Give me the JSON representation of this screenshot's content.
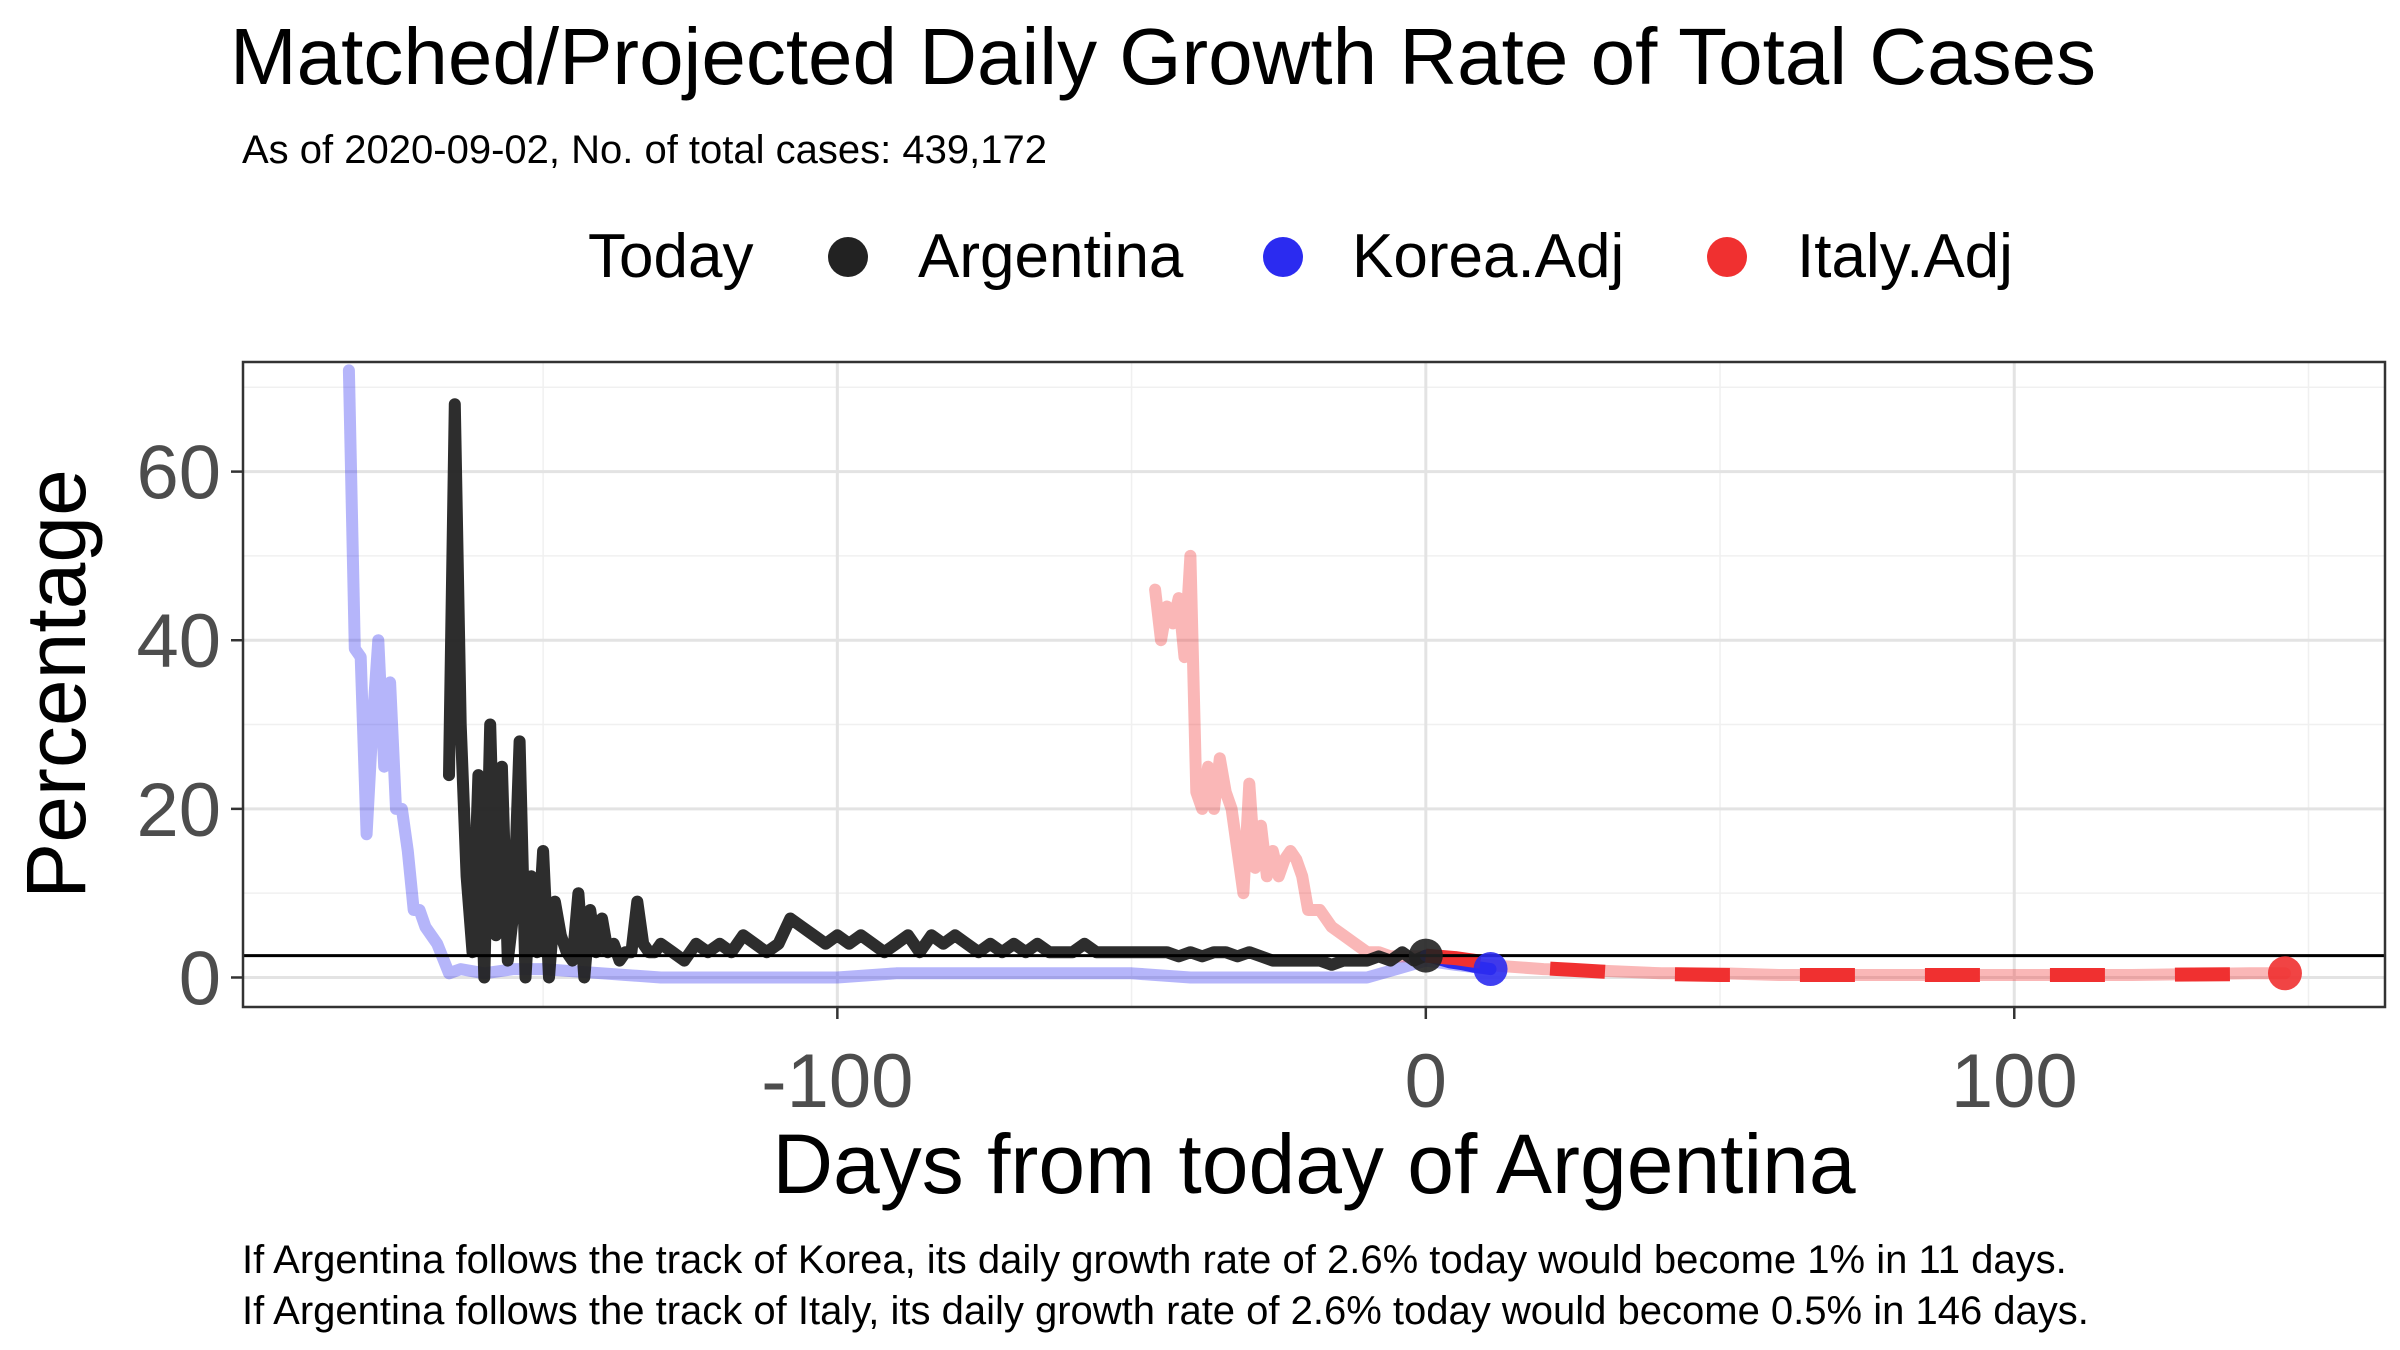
{
  "chart_data": {
    "type": "line",
    "title": "Matched/Projected Daily Growth Rate of Total Cases",
    "subtitle": "As of 2020-09-02, No. of total cases: 439,172",
    "xlabel": "Days from today of Argentina",
    "ylabel": "Percentage",
    "xlim": [
      -201,
      163
    ],
    "ylim": [
      -3.5,
      73
    ],
    "x_ticks": [
      -100,
      0,
      100
    ],
    "y_ticks": [
      0,
      20,
      40,
      60
    ],
    "x_tick_labels": [
      "-100",
      "0",
      "100"
    ],
    "y_tick_labels": [
      "0",
      "20",
      "40",
      "60"
    ],
    "grid": true,
    "legend": {
      "title": "Today",
      "position": "top",
      "entries": [
        {
          "label": "Argentina",
          "color": "#222222"
        },
        {
          "label": "Korea.Adj",
          "color": "#2b2bf0"
        },
        {
          "label": "Italy.Adj",
          "color": "#f03030"
        }
      ]
    },
    "hline": {
      "y": 2.6
    },
    "today_points": [
      {
        "series": "Argentina",
        "x": 0,
        "y": 2.6
      },
      {
        "series": "Korea.Adj",
        "x": 11,
        "y": 1.0
      },
      {
        "series": "Italy.Adj",
        "x": 146,
        "y": 0.5
      }
    ],
    "series": [
      {
        "name": "Argentina",
        "color": "#222222",
        "opacity": 0.95,
        "x": [
          -166,
          -165,
          -164,
          -163,
          -162,
          -161,
          -160,
          -159,
          -158,
          -157,
          -156,
          -155,
          -154,
          -153,
          -152,
          -151,
          -150,
          -149,
          -148,
          -147,
          -146,
          -145,
          -144,
          -143,
          -142,
          -141,
          -140,
          -139,
          -138,
          -137,
          -136,
          -135,
          -134,
          -133,
          -132,
          -131,
          -130,
          -128,
          -126,
          -124,
          -122,
          -120,
          -118,
          -116,
          -114,
          -112,
          -110,
          -108,
          -106,
          -104,
          -102,
          -100,
          -98,
          -96,
          -94,
          -92,
          -90,
          -88,
          -86,
          -84,
          -82,
          -80,
          -78,
          -76,
          -74,
          -72,
          -70,
          -68,
          -66,
          -64,
          -62,
          -60,
          -58,
          -56,
          -54,
          -52,
          -50,
          -48,
          -46,
          -44,
          -42,
          -40,
          -38,
          -36,
          -34,
          -32,
          -30,
          -28,
          -26,
          -24,
          -22,
          -20,
          -18,
          -16,
          -14,
          -12,
          -10,
          -8,
          -6,
          -4,
          -2,
          0
        ],
        "y": [
          24,
          68,
          30,
          12,
          3,
          24,
          0,
          30,
          5,
          25,
          2,
          8,
          28,
          0,
          12,
          3,
          15,
          0,
          9,
          5,
          3,
          2,
          10,
          0,
          8,
          3,
          7,
          3,
          4,
          2,
          3,
          3,
          9,
          4,
          3,
          3,
          4,
          3,
          2,
          4,
          3,
          4,
          3,
          5,
          4,
          3,
          4,
          7,
          6,
          5,
          4,
          5,
          4,
          5,
          4,
          3,
          4,
          5,
          3,
          5,
          4,
          5,
          4,
          3,
          4,
          3,
          4,
          3,
          4,
          3,
          3,
          3,
          4,
          3,
          3,
          3,
          3,
          3,
          3,
          3,
          2.5,
          3,
          2.5,
          3,
          3,
          2.5,
          3,
          2.5,
          2,
          2,
          2,
          2,
          2,
          1.5,
          2,
          2,
          2,
          2.5,
          2,
          3,
          2,
          2.6
        ]
      },
      {
        "name": "Korea.Adj",
        "color": "#2b2bf0",
        "opacity": 0.35,
        "x": [
          -183,
          -182,
          -181,
          -180,
          -179,
          -178,
          -177,
          -176,
          -175,
          -174,
          -173,
          -172,
          -171,
          -170,
          -168,
          -166,
          -164,
          -160,
          -155,
          -150,
          -140,
          -130,
          -120,
          -110,
          -100,
          -90,
          -80,
          -70,
          -60,
          -50,
          -40,
          -30,
          -20,
          -10,
          -5,
          0,
          5,
          11
        ],
        "y": [
          72,
          39,
          38,
          17,
          30,
          40,
          25,
          35,
          20,
          20,
          15,
          8,
          8,
          6,
          4,
          0.5,
          1,
          0.5,
          1,
          1,
          0.5,
          0,
          0,
          0,
          0,
          0.5,
          0.5,
          0.5,
          0.5,
          0.5,
          0,
          0,
          0,
          0,
          1,
          2,
          1.5,
          1
        ]
      },
      {
        "name": "Italy.Adj",
        "color": "#f03030",
        "opacity": 0.35,
        "x": [
          -46,
          -45,
          -44,
          -43,
          -42,
          -41,
          -40,
          -39,
          -38,
          -37,
          -36,
          -35,
          -34,
          -33,
          -32,
          -31,
          -30,
          -29,
          -28,
          -27,
          -26,
          -25,
          -24,
          -23,
          -22,
          -21,
          -20,
          -18,
          -16,
          -14,
          -12,
          -10,
          -8,
          -6,
          -4,
          -2,
          0,
          5,
          10,
          20,
          30,
          40,
          50,
          60,
          80,
          100,
          120,
          140,
          146
        ],
        "y": [
          46,
          40,
          44,
          42,
          45,
          38,
          50,
          22,
          20,
          25,
          20,
          26,
          22,
          20,
          15,
          10,
          23,
          13,
          18,
          12,
          15,
          12,
          14,
          15,
          14,
          12,
          8,
          8,
          6,
          5,
          4,
          3,
          3,
          2.5,
          2.5,
          2.5,
          2.5,
          2,
          1.5,
          1,
          0.8,
          0.5,
          0.5,
          0.3,
          0.3,
          0.3,
          0.3,
          0.5,
          0.5
        ]
      },
      {
        "name": "Korea.Adj",
        "color": "#2b2bf0",
        "opacity": 1,
        "dashed": false,
        "x": [
          0,
          2,
          4,
          6,
          8,
          10,
          11
        ],
        "y": [
          2.6,
          2.2,
          1.8,
          1.6,
          1.3,
          1.1,
          1.0
        ]
      },
      {
        "name": "Italy.Adj",
        "color": "#f03030",
        "opacity": 1,
        "dashed": true,
        "x": [
          0,
          5,
          10,
          15,
          20,
          25,
          30,
          35,
          40,
          50,
          60,
          80,
          100,
          120,
          140,
          146
        ],
        "y": [
          2.6,
          2.3,
          1.8,
          1.4,
          1.1,
          0.9,
          0.7,
          0.5,
          0.4,
          0.3,
          0.3,
          0.3,
          0.3,
          0.3,
          0.4,
          0.5
        ]
      }
    ],
    "annotations": [
      "If Argentina follows the track of Korea, its daily growth rate of 2.6% today would become 1% in 11 days.",
      "If Argentina follows the track of Italy, its daily growth rate of 2.6% today would become 0.5% in 146 days."
    ]
  }
}
